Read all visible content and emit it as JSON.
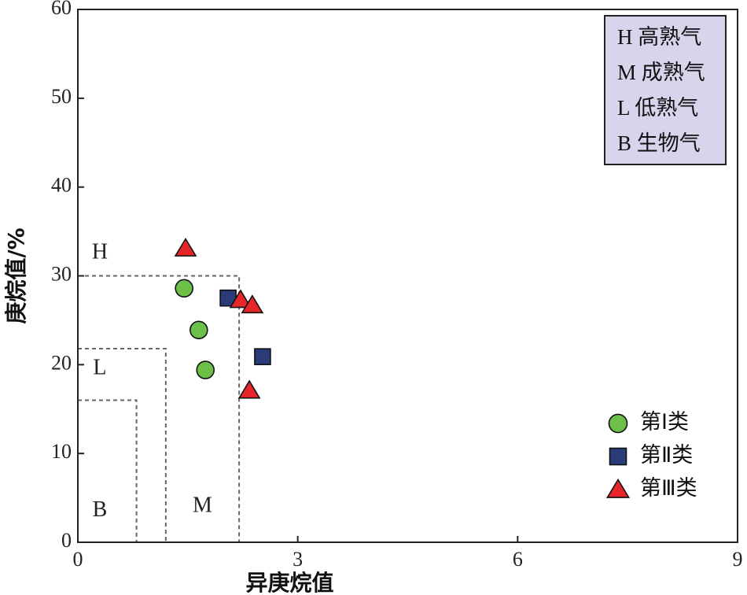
{
  "chart_data": {
    "type": "scatter",
    "title": "",
    "xlabel": "异庚烷值",
    "ylabel": "庚烷值/%",
    "xlim": [
      0,
      9
    ],
    "ylim": [
      0,
      60
    ],
    "xticks": [
      0,
      3,
      6,
      9
    ],
    "yticks": [
      0,
      10,
      20,
      30,
      40,
      50,
      60
    ],
    "grid": false,
    "legend_position": "bottom-right",
    "zones": {
      "H": {
        "x_max": 2.2,
        "y_min": 30
      },
      "L": {
        "x_max": 1.2,
        "y_min": 21.8
      },
      "B": {
        "x_max": 0.8,
        "y_min": 16
      }
    },
    "zone_labels": [
      {
        "text": "H",
        "x": 0.3,
        "y": 32.5
      },
      {
        "text": "L",
        "x": 0.3,
        "y": 19.5
      },
      {
        "text": "B",
        "x": 0.3,
        "y": 3.5
      },
      {
        "text": "M",
        "x": 1.7,
        "y": 4.0
      }
    ],
    "key_box": [
      {
        "code": "H",
        "text": "高熟气"
      },
      {
        "code": "M",
        "text": "成熟气"
      },
      {
        "code": "L",
        "text": "低熟气"
      },
      {
        "code": "B",
        "text": "生物气"
      }
    ],
    "series": [
      {
        "name": "第Ⅰ类",
        "marker": "circle",
        "color": "#6cc04a",
        "points": [
          {
            "x": 1.45,
            "y": 28.6
          },
          {
            "x": 1.65,
            "y": 23.9
          },
          {
            "x": 1.74,
            "y": 19.4
          }
        ]
      },
      {
        "name": "第Ⅱ类",
        "marker": "square",
        "color": "#2b3b7a",
        "points": [
          {
            "x": 2.05,
            "y": 27.5
          },
          {
            "x": 2.52,
            "y": 20.9
          }
        ]
      },
      {
        "name": "第Ⅲ类",
        "marker": "triangle",
        "color": "#e8262a",
        "points": [
          {
            "x": 1.47,
            "y": 33.1
          },
          {
            "x": 2.22,
            "y": 27.3
          },
          {
            "x": 2.38,
            "y": 26.7
          },
          {
            "x": 2.34,
            "y": 17.1
          }
        ]
      }
    ]
  }
}
